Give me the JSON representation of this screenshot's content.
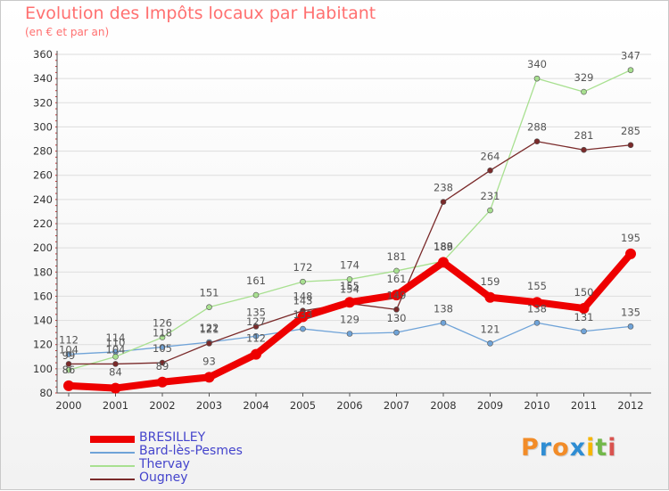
{
  "title": "Evolution des Impôts locaux par Habitant",
  "subtitle": "(en € et par an)",
  "logo": {
    "letters": [
      "P",
      "r",
      "o",
      "x",
      "i",
      "t",
      "i"
    ],
    "colors": [
      "#f28c28",
      "#2f8dd3",
      "#f28c28",
      "#2f8dd3",
      "#f7b500",
      "#72b84a",
      "#d9534f"
    ]
  },
  "colors": {
    "axis": "#555555",
    "grid": "#dddddd",
    "tick_label": "#333333",
    "data_label": "#555555"
  },
  "chart_data": {
    "type": "line",
    "title": "Evolution des Impôts locaux par Habitant",
    "subtitle": "(en € et par an)",
    "xlabel": "",
    "ylabel": "",
    "categories": [
      "2000",
      "2001",
      "2002",
      "2003",
      "2004",
      "2005",
      "2006",
      "2007",
      "2008",
      "2009",
      "2010",
      "2011",
      "2012"
    ],
    "ylim": [
      80,
      360
    ],
    "yticks": [
      80,
      100,
      120,
      140,
      160,
      180,
      200,
      220,
      240,
      260,
      280,
      300,
      320,
      340,
      360
    ],
    "grid": true,
    "legend_position": "bottom-left",
    "series": [
      {
        "name": "BRESILLEY",
        "color": "#ee0000",
        "width": 8,
        "marker_r": 6,
        "values": [
          86,
          84,
          89,
          93,
          112,
          143,
          155,
          161,
          188,
          159,
          155,
          150,
          195
        ]
      },
      {
        "name": "Bard-lès-Pesmes",
        "color": "#6fa3d8",
        "width": 1.3,
        "marker_r": 3,
        "values": [
          112,
          114,
          118,
          122,
          127,
          133,
          129,
          130,
          138,
          121,
          138,
          131,
          135
        ]
      },
      {
        "name": "Thervay",
        "color": "#a8e090",
        "width": 1.3,
        "marker_r": 3,
        "values": [
          99,
          110,
          126,
          151,
          161,
          172,
          174,
          181,
          189,
          231,
          340,
          329,
          347
        ]
      },
      {
        "name": "Ougney",
        "color": "#7a2a2a",
        "width": 1.3,
        "marker_r": 3,
        "values": [
          104,
          104,
          105,
          121,
          135,
          148,
          154,
          149,
          238,
          264,
          288,
          281,
          285
        ]
      }
    ]
  }
}
